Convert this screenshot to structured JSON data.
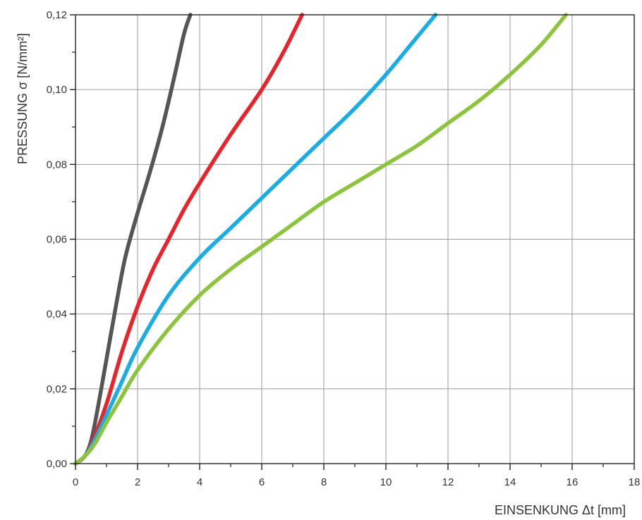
{
  "chart_data": {
    "type": "line",
    "xlabel": "EINSENKUNG Δt [mm]",
    "ylabel": "PRESSUNG σ [N/mm²]",
    "xlim": [
      0,
      18
    ],
    "ylim": [
      0,
      0.12
    ],
    "x_ticks": [
      0,
      2,
      4,
      6,
      8,
      10,
      12,
      14,
      16,
      18
    ],
    "x_tick_labels": [
      "0",
      "2",
      "4",
      "6",
      "8",
      "10",
      "12",
      "14",
      "16",
      "18"
    ],
    "y_ticks": [
      0,
      0.02,
      0.04,
      0.06,
      0.08,
      0.1,
      0.12
    ],
    "y_tick_labels": [
      "0,00",
      "0,02",
      "0,04",
      "0,06",
      "0,08",
      "0,10",
      "0,12"
    ],
    "grid": true,
    "series": [
      {
        "color": "#555555",
        "points": [
          [
            0,
            0
          ],
          [
            0.3,
            0.002
          ],
          [
            0.5,
            0.006
          ],
          [
            0.7,
            0.014
          ],
          [
            1.0,
            0.028
          ],
          [
            1.3,
            0.042
          ],
          [
            1.6,
            0.055
          ],
          [
            2.0,
            0.067
          ],
          [
            2.4,
            0.078
          ],
          [
            2.8,
            0.09
          ],
          [
            3.2,
            0.104
          ],
          [
            3.5,
            0.115
          ],
          [
            3.7,
            0.12
          ]
        ]
      },
      {
        "color": "#e8232a",
        "points": [
          [
            0,
            0
          ],
          [
            0.3,
            0.002
          ],
          [
            0.6,
            0.007
          ],
          [
            1.0,
            0.016
          ],
          [
            1.5,
            0.03
          ],
          [
            2.0,
            0.042
          ],
          [
            2.5,
            0.052
          ],
          [
            3.0,
            0.06
          ],
          [
            3.5,
            0.068
          ],
          [
            4.0,
            0.075
          ],
          [
            5.0,
            0.088
          ],
          [
            6.0,
            0.1
          ],
          [
            6.7,
            0.11
          ],
          [
            7.3,
            0.12
          ]
        ]
      },
      {
        "color": "#1aace4",
        "points": [
          [
            0,
            0
          ],
          [
            0.3,
            0.002
          ],
          [
            0.6,
            0.006
          ],
          [
            1.0,
            0.013
          ],
          [
            1.5,
            0.022
          ],
          [
            2.0,
            0.031
          ],
          [
            3.0,
            0.045
          ],
          [
            4.0,
            0.055
          ],
          [
            5.0,
            0.063
          ],
          [
            6.0,
            0.071
          ],
          [
            7.0,
            0.079
          ],
          [
            8.0,
            0.087
          ],
          [
            9.0,
            0.095
          ],
          [
            10.0,
            0.104
          ],
          [
            10.8,
            0.112
          ],
          [
            11.6,
            0.12
          ]
        ]
      },
      {
        "color": "#8cc43e",
        "points": [
          [
            0,
            0
          ],
          [
            0.3,
            0.002
          ],
          [
            0.6,
            0.005
          ],
          [
            1.0,
            0.011
          ],
          [
            1.5,
            0.018
          ],
          [
            2.0,
            0.025
          ],
          [
            3.0,
            0.036
          ],
          [
            4.0,
            0.045
          ],
          [
            5.0,
            0.052
          ],
          [
            6.0,
            0.058
          ],
          [
            7.0,
            0.064
          ],
          [
            8.0,
            0.07
          ],
          [
            9.0,
            0.075
          ],
          [
            10.0,
            0.08
          ],
          [
            11.0,
            0.085
          ],
          [
            12.0,
            0.091
          ],
          [
            13.0,
            0.097
          ],
          [
            14.0,
            0.104
          ],
          [
            15.0,
            0.112
          ],
          [
            15.8,
            0.12
          ]
        ]
      }
    ]
  }
}
